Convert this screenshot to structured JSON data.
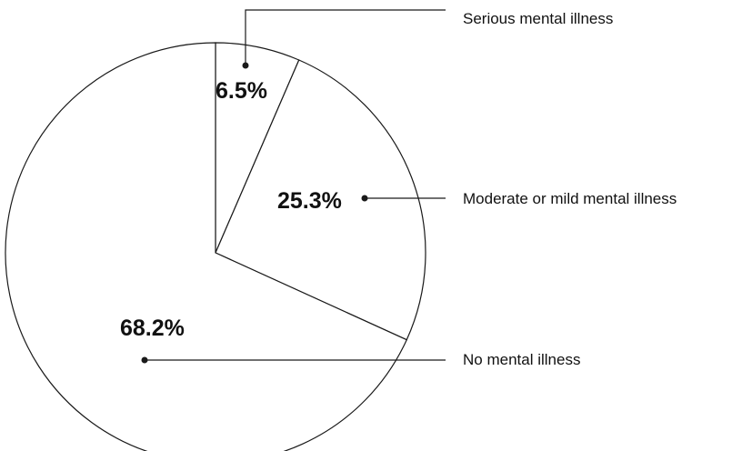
{
  "chart_data": {
    "type": "pie",
    "slices": [
      {
        "label": "Serious mental illness",
        "value": 6.5,
        "value_text": "6.5%"
      },
      {
        "label": "Moderate or mild mental illness",
        "value": 25.3,
        "value_text": "25.3%"
      },
      {
        "label": "No mental illness",
        "value": 68.2,
        "value_text": "68.2%"
      }
    ],
    "start": "12 o'clock",
    "direction": "clockwise",
    "fill_color": "#ffffff",
    "stroke_color": "#1a1a1a",
    "legend": "right, with leader lines"
  }
}
